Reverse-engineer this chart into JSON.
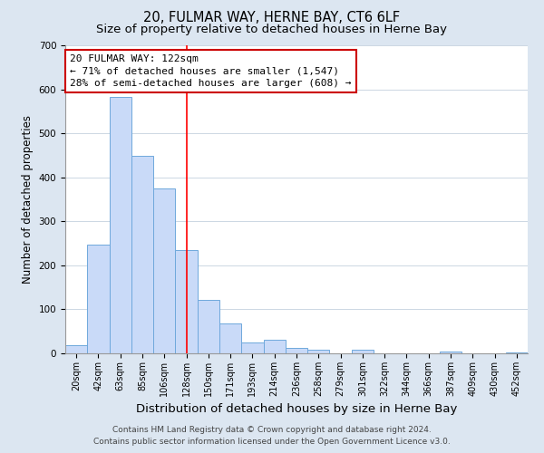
{
  "title": "20, FULMAR WAY, HERNE BAY, CT6 6LF",
  "subtitle": "Size of property relative to detached houses in Herne Bay",
  "xlabel": "Distribution of detached houses by size in Herne Bay",
  "ylabel": "Number of detached properties",
  "bin_labels": [
    "20sqm",
    "42sqm",
    "63sqm",
    "85sqm",
    "106sqm",
    "128sqm",
    "150sqm",
    "171sqm",
    "193sqm",
    "214sqm",
    "236sqm",
    "258sqm",
    "279sqm",
    "301sqm",
    "322sqm",
    "344sqm",
    "366sqm",
    "387sqm",
    "409sqm",
    "430sqm",
    "452sqm"
  ],
  "bar_heights": [
    18,
    247,
    582,
    449,
    375,
    235,
    121,
    68,
    24,
    31,
    13,
    9,
    0,
    8,
    0,
    0,
    0,
    5,
    0,
    0,
    2
  ],
  "bar_color": "#c9daf8",
  "bar_edge_color": "#6fa8dc",
  "red_line_x": 5,
  "annotation_line1": "20 FULMAR WAY: 122sqm",
  "annotation_line2": "← 71% of detached houses are smaller (1,547)",
  "annotation_line3": "28% of semi-detached houses are larger (608) →",
  "annotation_box_color": "#ffffff",
  "annotation_box_edge": "#cc0000",
  "ylim": [
    0,
    700
  ],
  "yticks": [
    0,
    100,
    200,
    300,
    400,
    500,
    600,
    700
  ],
  "footer_line1": "Contains HM Land Registry data © Crown copyright and database right 2024.",
  "footer_line2": "Contains public sector information licensed under the Open Government Licence v3.0.",
  "bg_color": "#dce6f1",
  "plot_bg_color": "#ffffff",
  "title_fontsize": 10.5,
  "subtitle_fontsize": 9.5,
  "tick_fontsize": 7,
  "ylabel_fontsize": 8.5,
  "xlabel_fontsize": 9.5,
  "annotation_fontsize": 8,
  "footer_fontsize": 6.5
}
